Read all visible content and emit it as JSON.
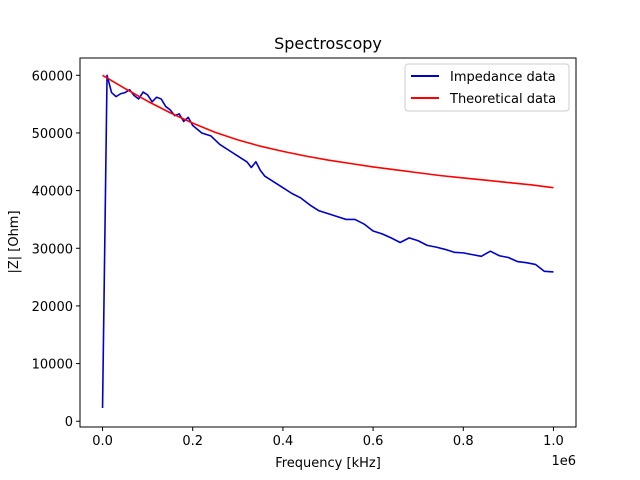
{
  "chart_data": {
    "type": "line",
    "title": "Spectroscopy",
    "xlabel": "Frequency [kHz]",
    "ylabel": "|Z| [Ohm]",
    "x_offset_label": "1e6",
    "xlim": [
      -0.05,
      1.05
    ],
    "ylim": [
      -1000,
      63000
    ],
    "x_ticks": [
      0.0,
      0.2,
      0.4,
      0.6,
      0.8,
      1.0
    ],
    "x_tick_labels": [
      "0.0",
      "0.2",
      "0.4",
      "0.6",
      "0.8",
      "1.0"
    ],
    "y_ticks": [
      0,
      10000,
      20000,
      30000,
      40000,
      50000,
      60000
    ],
    "y_tick_labels": [
      "0",
      "10000",
      "20000",
      "30000",
      "40000",
      "50000",
      "60000"
    ],
    "grid": false,
    "legend_position": "top-right",
    "series": [
      {
        "name": "Impedance data",
        "color": "#0000cc",
        "x": [
          0.0,
          0.01,
          0.02,
          0.03,
          0.04,
          0.05,
          0.06,
          0.07,
          0.08,
          0.09,
          0.1,
          0.11,
          0.12,
          0.13,
          0.14,
          0.15,
          0.16,
          0.17,
          0.18,
          0.19,
          0.2,
          0.22,
          0.24,
          0.26,
          0.28,
          0.3,
          0.32,
          0.33,
          0.34,
          0.35,
          0.36,
          0.38,
          0.4,
          0.42,
          0.44,
          0.46,
          0.48,
          0.5,
          0.52,
          0.54,
          0.56,
          0.58,
          0.6,
          0.62,
          0.64,
          0.66,
          0.68,
          0.7,
          0.72,
          0.74,
          0.76,
          0.78,
          0.8,
          0.82,
          0.84,
          0.86,
          0.88,
          0.9,
          0.92,
          0.94,
          0.96,
          0.98,
          1.0
        ],
        "y": [
          2300,
          60000,
          57000,
          56300,
          56800,
          57000,
          57500,
          56500,
          55900,
          57100,
          56600,
          55400,
          56200,
          55900,
          54600,
          54000,
          53000,
          53300,
          52000,
          52700,
          51300,
          50000,
          49500,
          48000,
          47000,
          46000,
          45000,
          44000,
          45000,
          43500,
          42500,
          41500,
          40500,
          39500,
          38700,
          37500,
          36500,
          36000,
          35500,
          35000,
          35000,
          34200,
          33000,
          32500,
          31800,
          31000,
          31800,
          31300,
          30500,
          30200,
          29800,
          29300,
          29200,
          28900,
          28600,
          29500,
          28700,
          28400,
          27700,
          27500,
          27200,
          26000,
          25900
        ]
      },
      {
        "name": "Theoretical data",
        "color": "#ff0000",
        "x": [
          0.0,
          0.05,
          0.1,
          0.15,
          0.2,
          0.25,
          0.3,
          0.35,
          0.4,
          0.45,
          0.5,
          0.55,
          0.6,
          0.65,
          0.7,
          0.75,
          0.8,
          0.85,
          0.9,
          0.95,
          1.0
        ],
        "y": [
          60000,
          57700,
          55500,
          53500,
          51700,
          50100,
          48800,
          47700,
          46800,
          46000,
          45300,
          44700,
          44100,
          43600,
          43100,
          42600,
          42200,
          41800,
          41400,
          41000,
          40500
        ]
      }
    ]
  }
}
